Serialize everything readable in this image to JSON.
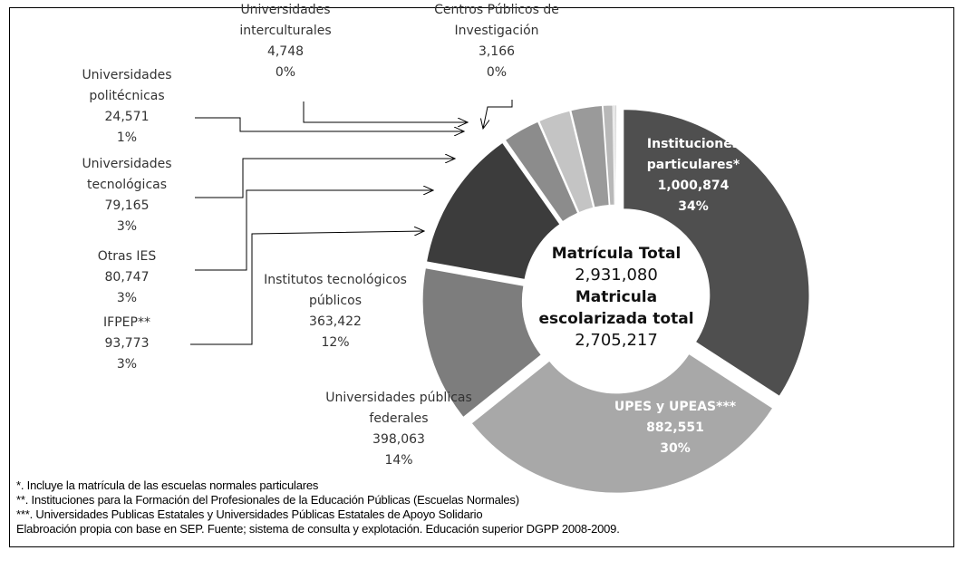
{
  "chart_data": {
    "type": "donut",
    "categories": [
      "Instituciones particulares*",
      "UPES y UPEAS***",
      "Universidades públicas federales",
      "Institutos tecnológicos públicos",
      "IFPEP**",
      "Otras IES",
      "Universidades tecnológicas",
      "Universidades politécnicas",
      "Universidades interculturales",
      "Centros Públicos de Investigación"
    ],
    "values": [
      1000874,
      882551,
      398063,
      363422,
      93773,
      80747,
      79165,
      24571,
      4748,
      3166
    ],
    "value_labels": [
      "1,000,874",
      "882,551",
      "398,063",
      "363,422",
      "93,773",
      "80,747",
      "79,165",
      "24,571",
      "4,748",
      "3,166"
    ],
    "percent_labels": [
      "34%",
      "30%",
      "14%",
      "12%",
      "3%",
      "3%",
      "3%",
      "1%",
      "0%",
      "0%"
    ],
    "colors": [
      "#4f4f4f",
      "#a8a8a8",
      "#7d7d7d",
      "#3c3c3c",
      "#8c8c8c",
      "#c4c4c4",
      "#9a9a9a",
      "#b8b8b8",
      "#cfcfcf",
      "#a0a0a0"
    ],
    "center": {
      "total_title": "Matrícula Total",
      "total": "2,931,080",
      "enrolled_title": "Matricula escolarizada total",
      "enrolled": "2,705,217"
    },
    "notes": [
      "*. Incluye la matrícula de las escuelas normales particulares",
      "**. Instituciones para la Formación del Profesionales de la Educación Públicas (Escuelas Normales)",
      "***. Universidades Publicas Estatales y Universidades Públicas Estatales de Apoyo Solidario",
      "Elabroación propia con base en SEP. Fuente; sistema de consulta y explotación. Educación superior DGPP 2008-2009."
    ]
  }
}
